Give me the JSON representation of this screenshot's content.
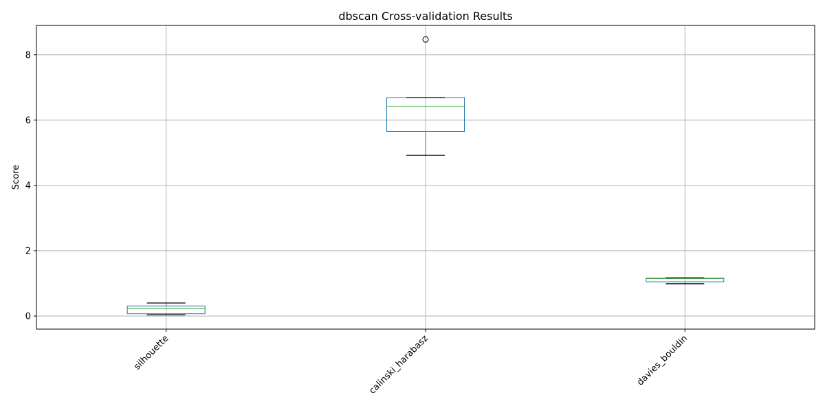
{
  "chart_data": {
    "type": "boxplot",
    "title": "dbscan Cross-validation Results",
    "xlabel": "",
    "ylabel": "Score",
    "ylim": [
      -0.4,
      8.9
    ],
    "yticks": [
      0,
      2,
      4,
      6,
      8
    ],
    "grid": true,
    "categories": [
      "silhouette",
      "calinski_harabasz",
      "davies_bouldin"
    ],
    "boxes": [
      {
        "category": "silhouette",
        "whisker_low": 0.04,
        "q1": 0.07,
        "median": 0.23,
        "q3": 0.31,
        "whisker_high": 0.4,
        "outliers": []
      },
      {
        "category": "calinski_harabasz",
        "whisker_low": 4.92,
        "q1": 5.65,
        "median": 6.42,
        "q3": 6.69,
        "whisker_high": 6.69,
        "outliers": [
          8.47
        ]
      },
      {
        "category": "davies_bouldin",
        "whisker_low": 0.99,
        "q1": 1.05,
        "median": 1.15,
        "q3": 1.16,
        "whisker_high": 1.17,
        "outliers": []
      }
    ],
    "colors": {
      "box": "#1f77b4",
      "median": "#2ca02c",
      "whisker_cap": "#000000",
      "grid": "#b0b0b0",
      "axes": "#000000"
    }
  }
}
